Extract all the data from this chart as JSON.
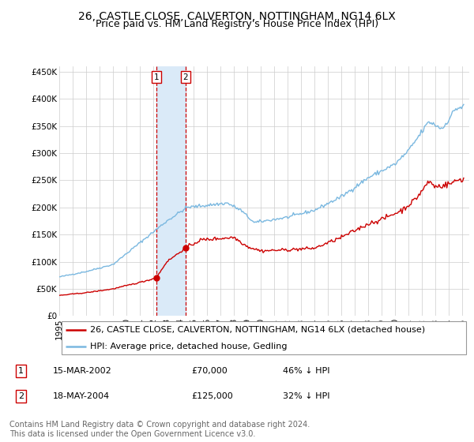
{
  "title": "26, CASTLE CLOSE, CALVERTON, NOTTINGHAM, NG14 6LX",
  "subtitle": "Price paid vs. HM Land Registry's House Price Index (HPI)",
  "ylim": [
    0,
    460000
  ],
  "yticks": [
    0,
    50000,
    100000,
    150000,
    200000,
    250000,
    300000,
    350000,
    400000,
    450000
  ],
  "ytick_labels": [
    "£0",
    "£50K",
    "£100K",
    "£150K",
    "£200K",
    "£250K",
    "£300K",
    "£350K",
    "£400K",
    "£450K"
  ],
  "hpi_color": "#7ab8e0",
  "price_color": "#cc0000",
  "transactions": [
    {
      "date_num": 2002.21,
      "price": 70000,
      "label": "1",
      "date_str": "15-MAR-2002",
      "price_str": "£70,000",
      "pct": "46% ↓ HPI"
    },
    {
      "date_num": 2004.38,
      "price": 125000,
      "label": "2",
      "date_str": "18-MAY-2004",
      "price_str": "£125,000",
      "pct": "32% ↓ HPI"
    }
  ],
  "vline_color": "#cc0000",
  "vspan_color": "#daeaf8",
  "legend_label_price": "26, CASTLE CLOSE, CALVERTON, NOTTINGHAM, NG14 6LX (detached house)",
  "legend_label_hpi": "HPI: Average price, detached house, Gedling",
  "footer": "Contains HM Land Registry data © Crown copyright and database right 2024.\nThis data is licensed under the Open Government Licence v3.0.",
  "title_fontsize": 10,
  "subtitle_fontsize": 9,
  "tick_fontsize": 7.5,
  "legend_fontsize": 8,
  "footer_fontsize": 7,
  "xlim_start": 1995,
  "xlim_end": 2025.5
}
